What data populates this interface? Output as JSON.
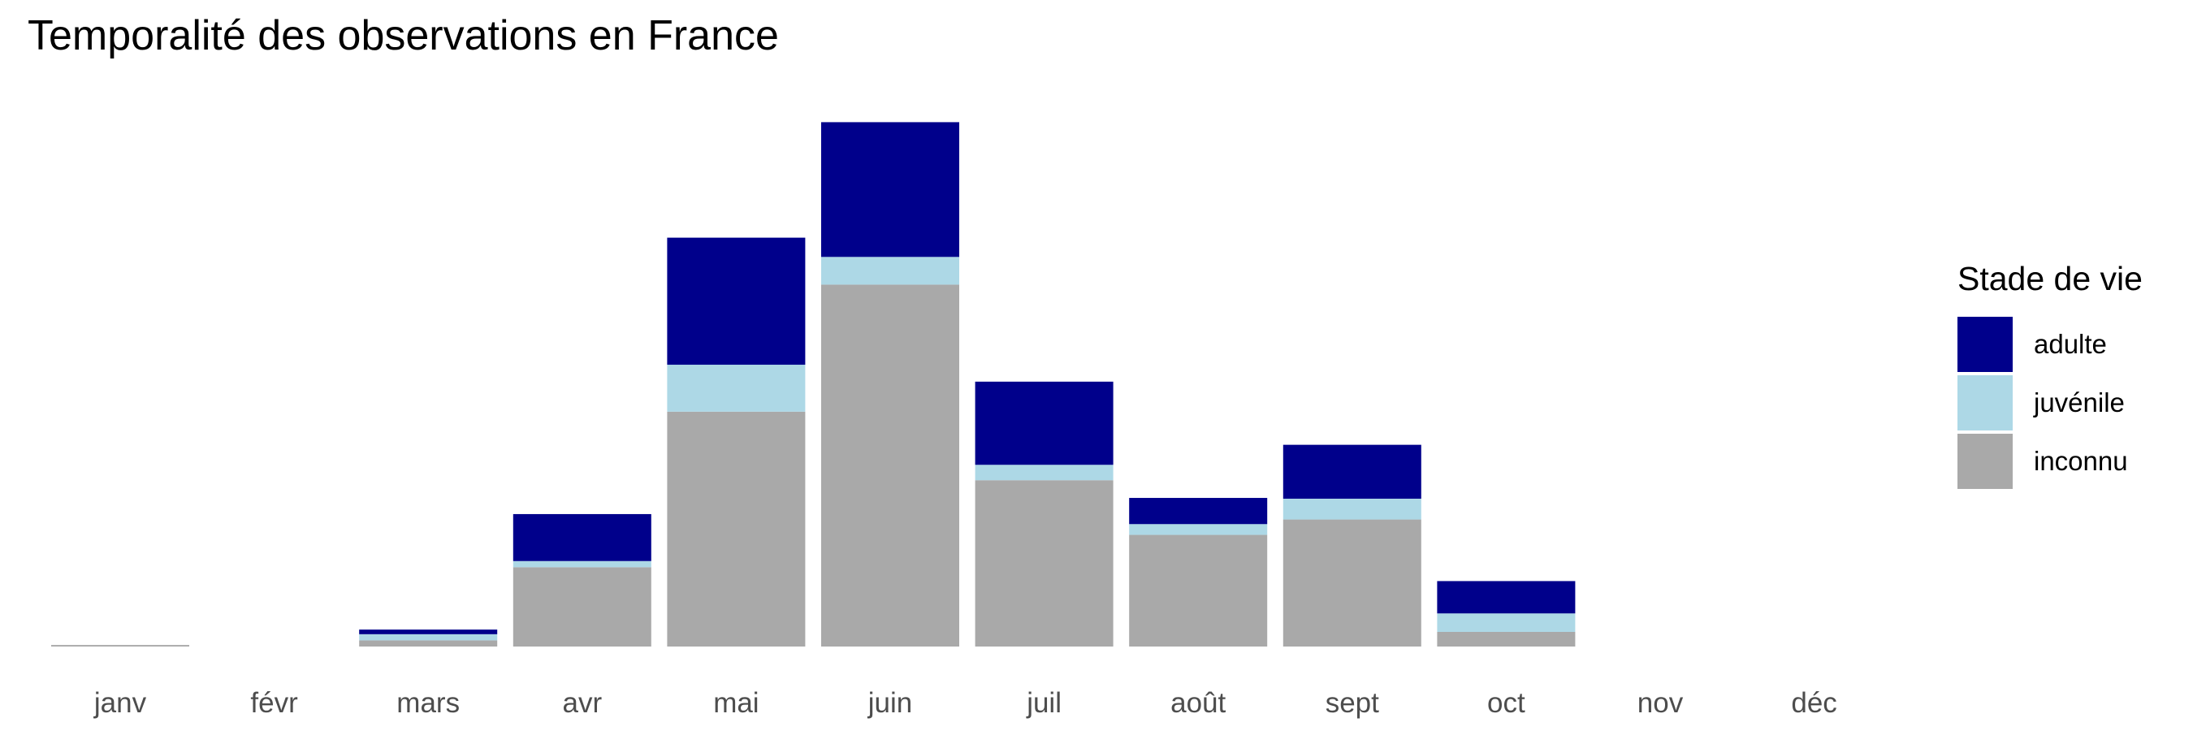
{
  "title": "Temporalité des observations en France",
  "legend": {
    "title": "Stade de vie",
    "items": [
      {
        "label": "adulte",
        "color": "#00008B"
      },
      {
        "label": "juvénile",
        "color": "#ADD8E6"
      },
      {
        "label": "inconnu",
        "color": "#A9A9A9"
      }
    ]
  },
  "chart_data": {
    "type": "bar",
    "stacked": true,
    "title": "Temporalité des observations en France",
    "xlabel": "",
    "ylabel": "",
    "categories": [
      "janv",
      "févr",
      "mars",
      "avr",
      "mai",
      "juin",
      "juil",
      "août",
      "sept",
      "oct",
      "nov",
      "déc"
    ],
    "series": [
      {
        "name": "inconnu",
        "color": "#A9A9A9",
        "values": [
          2,
          0,
          8,
          103,
          305,
          470,
          216,
          145,
          165,
          19,
          0,
          0
        ]
      },
      {
        "name": "juvénile",
        "color": "#ADD8E6",
        "values": [
          0,
          0,
          8,
          8,
          61,
          36,
          20,
          14,
          27,
          24,
          0,
          0
        ]
      },
      {
        "name": "adulte",
        "color": "#00008B",
        "values": [
          0,
          0,
          6,
          61,
          165,
          175,
          108,
          34,
          70,
          42,
          0,
          0
        ]
      }
    ],
    "ylim": [
      0,
      700
    ],
    "y_axis_shown": false,
    "grid": false,
    "legend_position": "right"
  }
}
